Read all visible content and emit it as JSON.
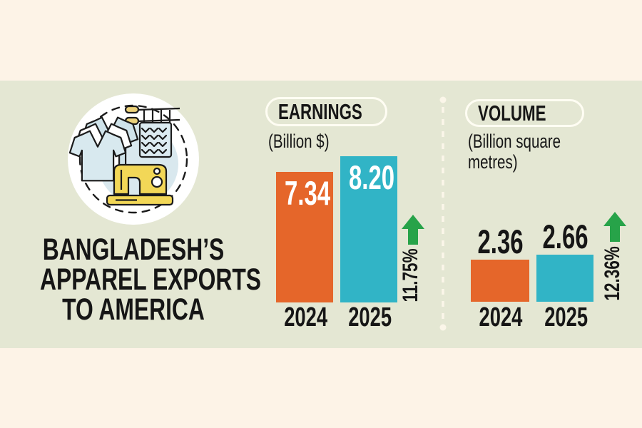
{
  "header": {
    "title_lines": [
      "BANGLADESH’S",
      "APPAREL EXPORTS",
      "TO AMERICA"
    ]
  },
  "colors": {
    "background": "#fdf3e7",
    "panel": "#e4e7d3",
    "bar_2024": "#e5662a",
    "bar_2025": "#31b4c6",
    "arrow_up": "#27a349",
    "text": "#161616",
    "pill_border": "#fffdf3",
    "divider": "#fbf6e9",
    "bar_value_text": "#ffffff"
  },
  "icon": {
    "name": "apparel-manufacturing",
    "depicts": [
      "t-shirts",
      "knitting-on-needles",
      "sewing-machine"
    ]
  },
  "chart_data": [
    {
      "type": "bar",
      "title": "EARNINGS",
      "subtitle": "(Billion $)",
      "categories": [
        "2024",
        "2025"
      ],
      "values": [
        7.34,
        8.2
      ],
      "value_labels": [
        "7.34",
        "8.20"
      ],
      "value_label_placement": "inside-top",
      "bar_colors": [
        "#e5662a",
        "#31b4c6"
      ],
      "ylim": [
        0,
        8.5
      ],
      "grid": false,
      "change": {
        "label": "11.75%",
        "direction": "up"
      }
    },
    {
      "type": "bar",
      "title": "VOLUME",
      "subtitle": "(Billion square metres)",
      "categories": [
        "2024",
        "2025"
      ],
      "values": [
        2.36,
        2.66
      ],
      "value_labels": [
        "2.36",
        "2.66"
      ],
      "value_label_placement": "above",
      "bar_colors": [
        "#e5662a",
        "#31b4c6"
      ],
      "ylim": [
        0,
        8.5
      ],
      "grid": false,
      "change": {
        "label": "12.36%",
        "direction": "up"
      }
    }
  ]
}
